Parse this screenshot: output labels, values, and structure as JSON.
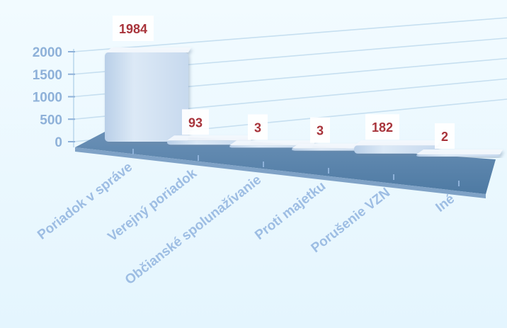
{
  "chart_data": {
    "type": "bar",
    "title": "",
    "xlabel": "",
    "ylabel": "",
    "categories": [
      "Poriadok v správe",
      "Verejný poriadok",
      "Občianské spolunažívanie",
      "Proti majetku",
      "Porušenie VZN",
      "Iné"
    ],
    "values": [
      1984,
      93,
      3,
      3,
      182,
      2
    ],
    "ylim": [
      0,
      2000
    ],
    "yticks": [
      "0",
      "500",
      "1000",
      "1500",
      "2000"
    ],
    "grid": true,
    "three_d": true,
    "legend": "none",
    "colors": {
      "bar": "#d9e8f6",
      "bar_top": "#f3f8fd",
      "floor": "#5c85ad",
      "axis_text": "#8eb1d9",
      "data_label": "#a8343b",
      "label_box": "#ffffff"
    }
  }
}
